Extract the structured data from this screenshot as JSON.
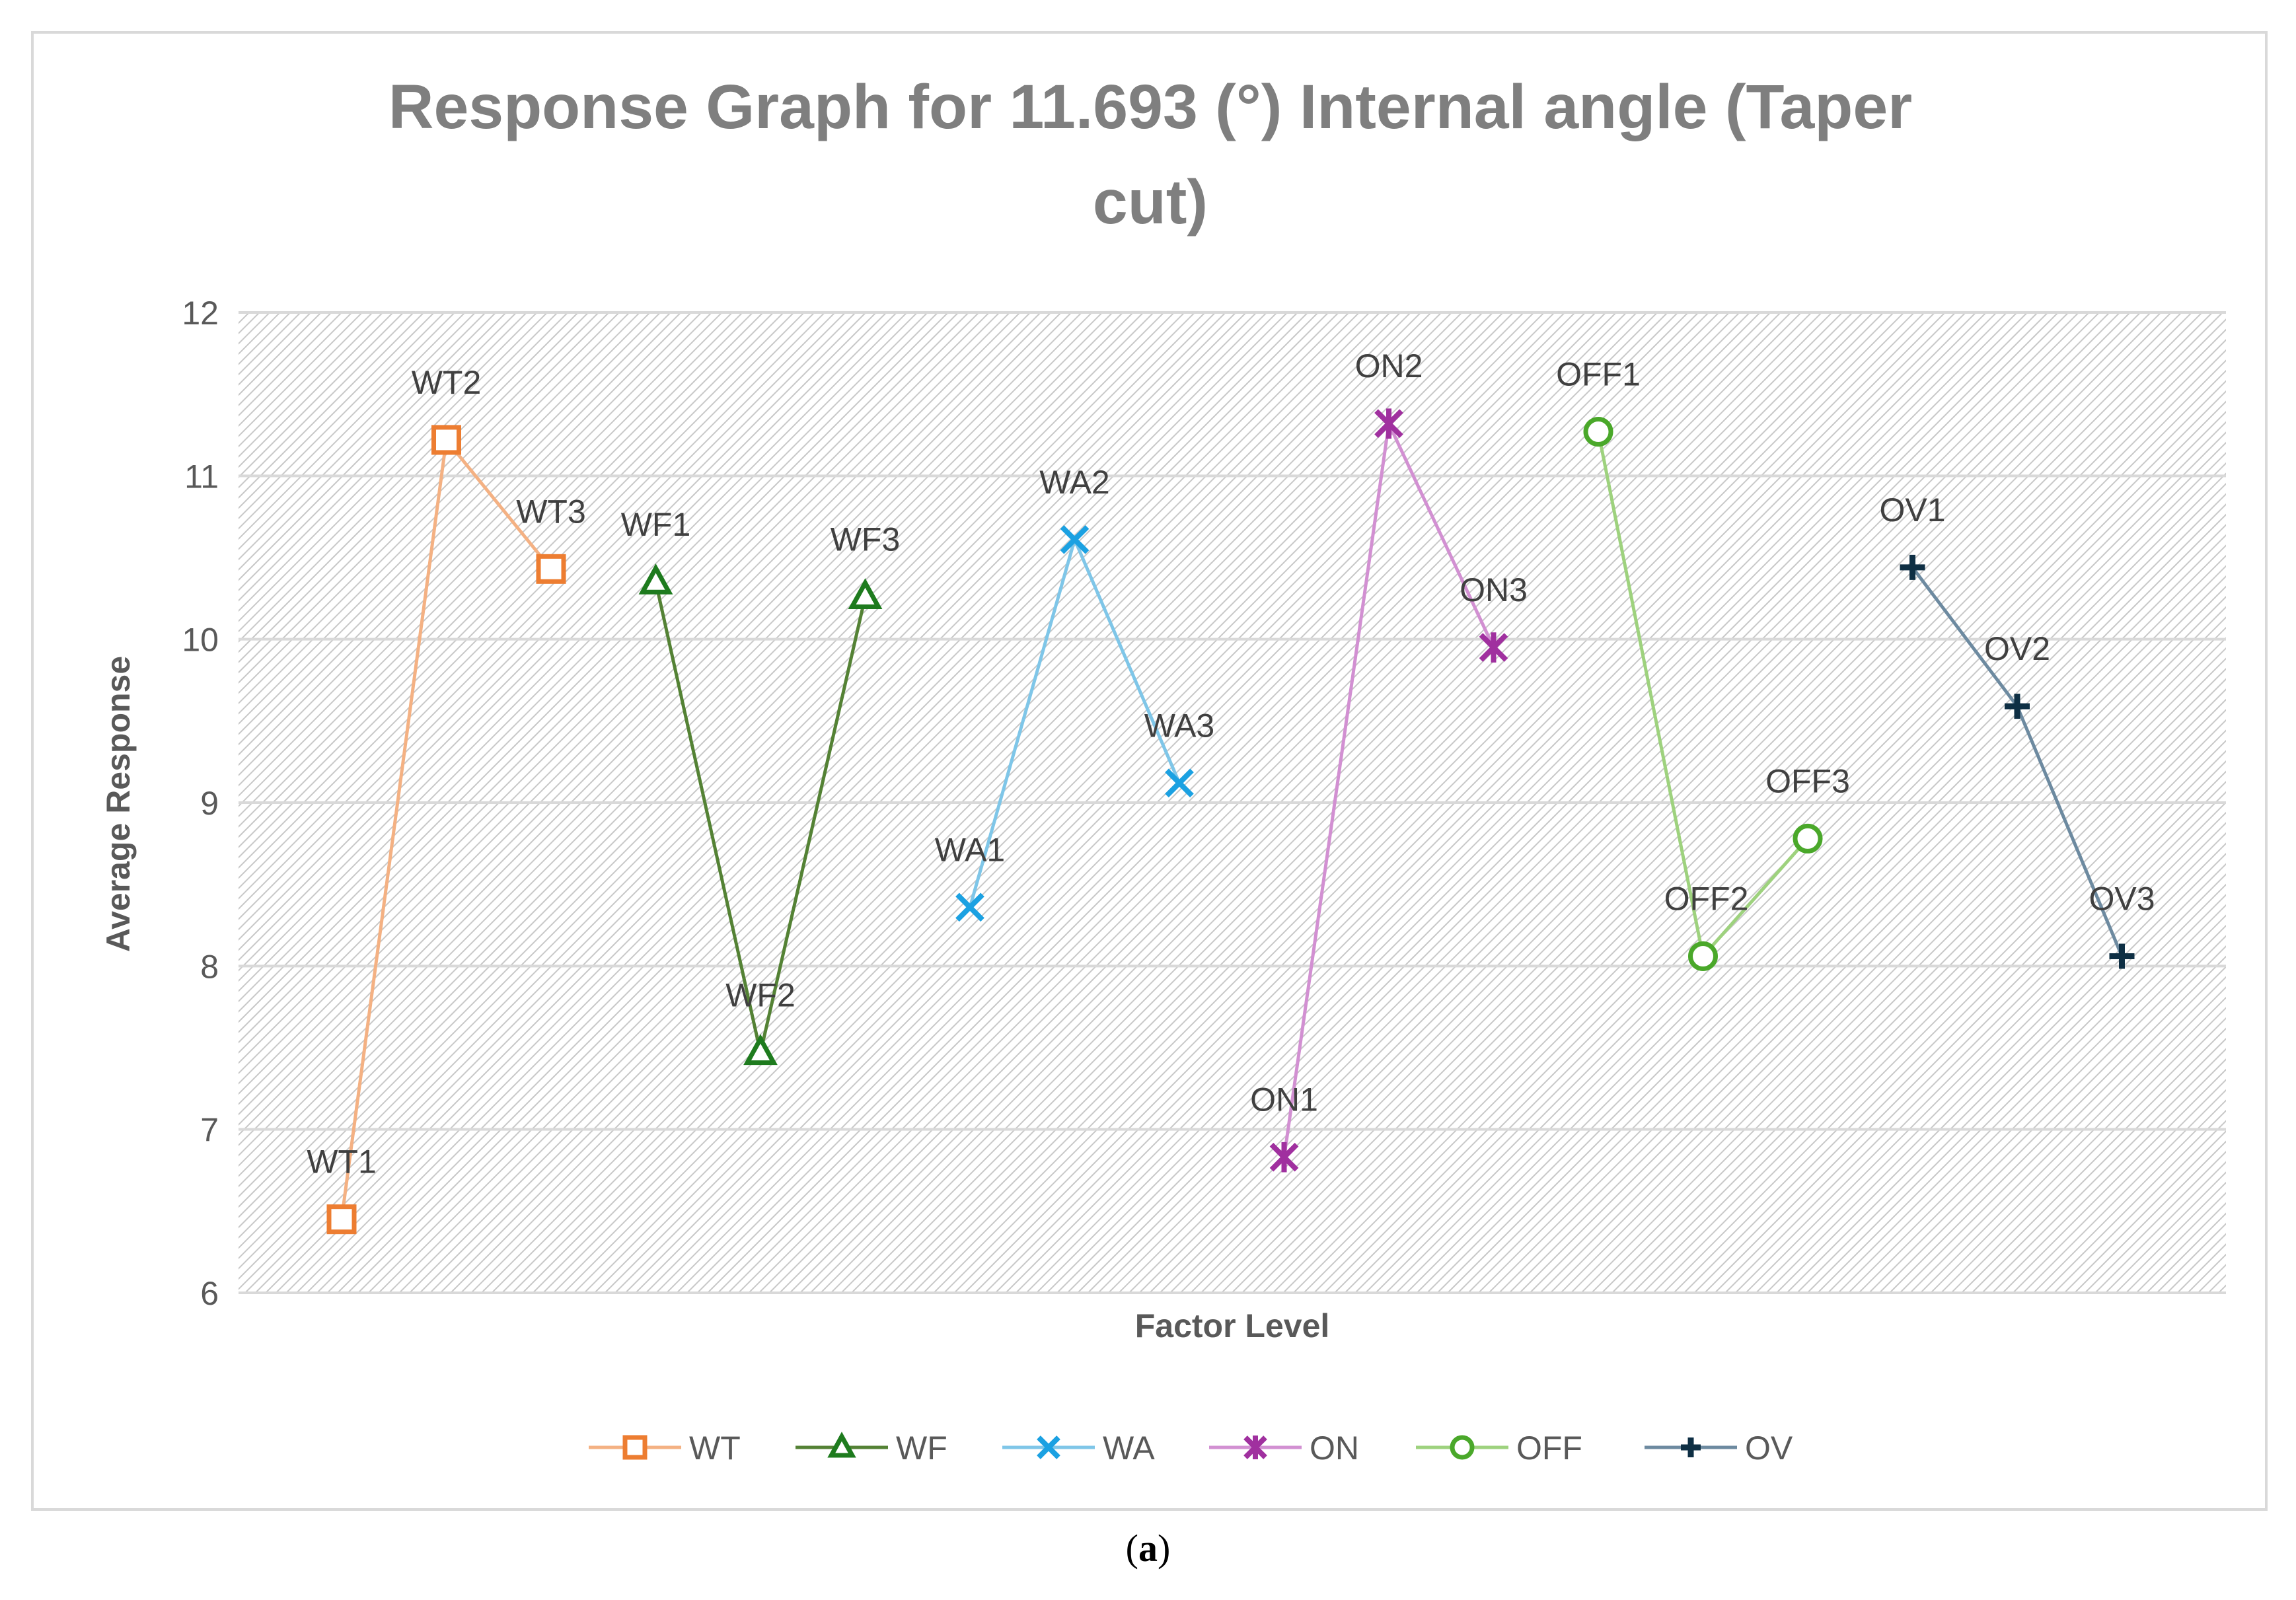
{
  "chart_data": {
    "type": "line",
    "title": "Response Graph for 11.693 (°) Internal angle (Taper cut)",
    "xlabel": "Factor Level",
    "ylabel": "Average Response",
    "ylim": [
      6,
      12
    ],
    "yticks": [
      "6",
      "7",
      "8",
      "9",
      "10",
      "11",
      "12"
    ],
    "grid": true,
    "legend_position": "bottom",
    "series": [
      {
        "name": "WT",
        "color": "#f4b183",
        "marker_color": "#ed7d31",
        "marker": "square",
        "x": [
          1,
          2,
          3
        ],
        "values": [
          6.45,
          11.22,
          10.43
        ],
        "labels": [
          "WT1",
          "WT2",
          "WT3"
        ]
      },
      {
        "name": "WF",
        "color": "#548235",
        "marker_color": "#1e7b1e",
        "marker": "triangle",
        "x": [
          4,
          5,
          6
        ],
        "values": [
          10.35,
          7.47,
          10.26
        ],
        "labels": [
          "WF1",
          "WF2",
          "WF3"
        ]
      },
      {
        "name": "WA",
        "color": "#7fc6e8",
        "marker_color": "#1ba1e2",
        "marker": "x",
        "x": [
          7,
          8,
          9
        ],
        "values": [
          8.36,
          10.61,
          9.12
        ],
        "labels": [
          "WA1",
          "WA2",
          "WA3"
        ]
      },
      {
        "name": "ON",
        "color": "#d290d2",
        "marker_color": "#a0309f",
        "marker": "star",
        "x": [
          10,
          11,
          12
        ],
        "values": [
          6.83,
          11.32,
          9.95
        ],
        "labels": [
          "ON1",
          "ON2",
          "ON3"
        ]
      },
      {
        "name": "OFF",
        "color": "#9ed27e",
        "marker_color": "#4aa82a",
        "marker": "circle",
        "x": [
          13,
          14,
          15
        ],
        "values": [
          11.27,
          8.06,
          8.78
        ],
        "labels": [
          "OFF1",
          "OFF2",
          "OFF3"
        ]
      },
      {
        "name": "OV",
        "color": "#6d8aa0",
        "marker_color": "#0e2f44",
        "marker": "plus",
        "x": [
          16,
          17,
          18
        ],
        "values": [
          10.44,
          9.59,
          8.06
        ],
        "labels": [
          "OV1",
          "OV2",
          "OV3"
        ]
      }
    ]
  },
  "caption": {
    "open": "(",
    "letter": "a",
    "close": ")"
  }
}
